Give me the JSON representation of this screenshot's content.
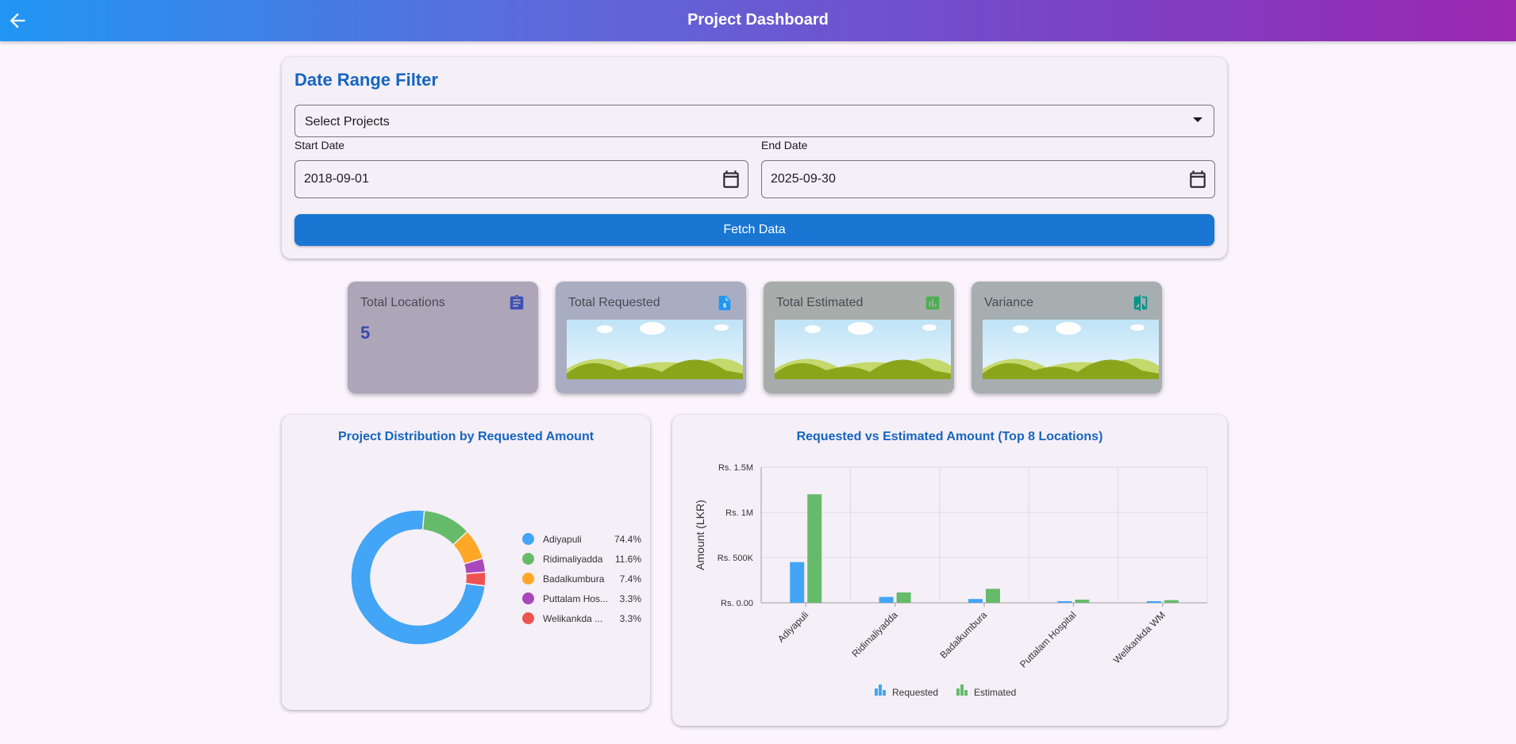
{
  "topbar": {
    "title": "Project Dashboard"
  },
  "filter": {
    "title": "Date Range Filter",
    "projects_placeholder": "Select Projects",
    "start_label": "Start Date",
    "start_value": "2018-09-01",
    "end_label": "End Date",
    "end_value": "2025-09-30",
    "fetch_label": "Fetch Data"
  },
  "stats": [
    {
      "title": "Total Locations",
      "value": "5",
      "icon": "clipboard-icon",
      "color": "#3f51b5"
    },
    {
      "title": "Total Requested",
      "icon": "invoice-icon",
      "color": "#2196f3"
    },
    {
      "title": "Total Estimated",
      "icon": "bar-chart-icon",
      "color": "#4caf50"
    },
    {
      "title": "Variance",
      "icon": "compare-icon",
      "color": "#009688"
    }
  ],
  "pie": {
    "title": "Project Distribution by Requested Amount",
    "legend": [
      {
        "name": "Adiyapuli",
        "pct": "74.4%"
      },
      {
        "name": "Ridimaliyadda",
        "pct": "11.6%"
      },
      {
        "name": "Badalkumbura",
        "pct": "7.4%"
      },
      {
        "name": "Puttalam Hos...",
        "pct": "3.3%"
      },
      {
        "name": "Welikankda ...",
        "pct": "3.3%"
      }
    ]
  },
  "bar": {
    "title": "Requested vs Estimated Amount (Top 8 Locations)",
    "legend_requested": "Requested",
    "legend_estimated": "Estimated"
  },
  "chart_data": [
    {
      "type": "pie",
      "title": "Project Distribution by Requested Amount",
      "categories": [
        "Adiyapuli",
        "Ridimaliyadda",
        "Badalkumbura",
        "Puttalam Hos...",
        "Welikankda ..."
      ],
      "values": [
        74.4,
        11.6,
        7.4,
        3.3,
        3.3
      ],
      "colors": [
        "#42a5f5",
        "#66bb6a",
        "#ffa726",
        "#ab47bc",
        "#ef5350"
      ],
      "style": "donut",
      "legend": "right"
    },
    {
      "type": "bar",
      "title": "Requested vs Estimated Amount (Top 8 Locations)",
      "ylabel": "Amount (LKR)",
      "xlabel": "",
      "categories": [
        "Adiyapuli",
        "Ridimaliyadda",
        "Badalkumbura",
        "Puttalam Hospital",
        "Welikankda WM"
      ],
      "series": [
        {
          "name": "Requested",
          "color": "#42a5f5",
          "values": [
            450000,
            65000,
            42000,
            18000,
            18000
          ]
        },
        {
          "name": "Estimated",
          "color": "#66bb6a",
          "values": [
            1200000,
            115000,
            155000,
            35000,
            30000
          ]
        }
      ],
      "ylim": [
        0,
        1500000
      ],
      "yticks": [
        0,
        500000,
        1000000,
        1500000
      ],
      "ytick_labels": [
        "Rs. 0.00",
        "Rs. 500K",
        "Rs. 1M",
        "Rs. 1.5M"
      ],
      "grid": true,
      "legend": "bottom"
    }
  ]
}
